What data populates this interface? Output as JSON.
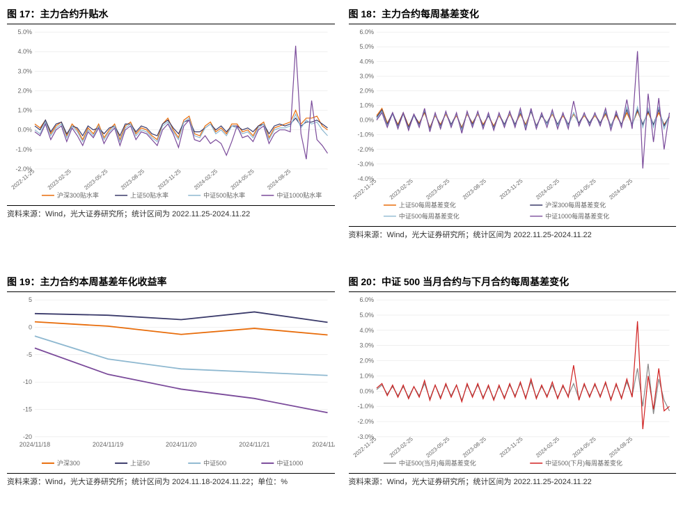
{
  "colors": {
    "orange": "#e86c0a",
    "navy": "#3a3a6a",
    "lightblue": "#8eb8d0",
    "purple": "#7a4a9a",
    "red": "#d02020",
    "gray": "#888888",
    "grid": "#e0e0e0",
    "bg": "#ffffff"
  },
  "chart17": {
    "title": "图 17：主力合约升贴水",
    "source": "资料来源：Wind，光大证券研究所；统计区间为 2022.11.25-2024.11.22",
    "type": "line",
    "ylim": [
      -2.0,
      5.0
    ],
    "ytick_step": 1.0,
    "yformat": "pct1",
    "xlabels": [
      "2022-11-25",
      "2023-02-25",
      "2023-05-25",
      "2023-08-25",
      "2023-11-25",
      "2024-02-25",
      "2024-05-25",
      "2024-08-25"
    ],
    "legend_pos": "bottom",
    "series": [
      {
        "name": "沪深300贴水率",
        "color": "orange",
        "data": [
          0.3,
          0.1,
          0.5,
          -0.2,
          0.2,
          0.4,
          -0.3,
          0.3,
          0.0,
          -0.5,
          0.1,
          -0.2,
          0.3,
          -0.4,
          0.0,
          0.3,
          -0.5,
          0.2,
          0.4,
          -0.2,
          0.1,
          0.0,
          -0.3,
          -0.5,
          0.3,
          0.6,
          0.0,
          -0.4,
          0.5,
          0.7,
          -0.2,
          -0.3,
          0.2,
          0.4,
          -0.1,
          0.1,
          -0.2,
          0.3,
          0.3,
          -0.1,
          0.0,
          -0.3,
          0.2,
          0.4,
          -0.4,
          0.1,
          0.2,
          0.3,
          0.4,
          1.0,
          0.3,
          0.6,
          0.6,
          0.7,
          0.2,
          0.0
        ]
      },
      {
        "name": "上证50贴水率",
        "color": "navy",
        "data": [
          0.2,
          0.0,
          0.5,
          -0.1,
          0.3,
          0.4,
          -0.2,
          0.2,
          0.1,
          -0.3,
          0.2,
          0.0,
          0.1,
          -0.2,
          0.1,
          0.2,
          -0.3,
          0.3,
          0.3,
          -0.1,
          0.2,
          0.1,
          -0.2,
          -0.3,
          0.3,
          0.5,
          0.1,
          -0.2,
          0.4,
          0.5,
          -0.1,
          -0.1,
          0.1,
          0.3,
          0.0,
          0.2,
          -0.1,
          0.2,
          0.2,
          0.0,
          0.1,
          -0.1,
          0.2,
          0.3,
          -0.2,
          0.2,
          0.3,
          0.2,
          0.3,
          0.6,
          0.2,
          0.4,
          0.4,
          0.5,
          0.3,
          0.1
        ]
      },
      {
        "name": "中证500贴水率",
        "color": "lightblue",
        "data": [
          0.0,
          -0.2,
          0.4,
          -0.3,
          0.1,
          0.3,
          -0.4,
          0.2,
          -0.1,
          -0.6,
          0.0,
          -0.3,
          0.2,
          -0.5,
          -0.1,
          0.2,
          -0.6,
          0.1,
          0.3,
          -0.3,
          0.0,
          -0.1,
          -0.4,
          -0.6,
          0.2,
          0.4,
          -0.1,
          -0.5,
          0.4,
          0.6,
          -0.3,
          -0.4,
          0.1,
          0.3,
          -0.2,
          0.0,
          -0.3,
          0.2,
          0.1,
          -0.2,
          -0.1,
          -0.4,
          0.1,
          0.3,
          -0.5,
          0.0,
          0.1,
          0.1,
          0.2,
          0.8,
          0.1,
          0.5,
          0.3,
          0.4,
          0.0,
          -0.3
        ]
      },
      {
        "name": "中证1000贴水率",
        "color": "purple",
        "data": [
          -0.1,
          -0.3,
          0.3,
          -0.5,
          0.0,
          0.2,
          -0.6,
          0.1,
          -0.3,
          -0.8,
          -0.1,
          -0.4,
          0.1,
          -0.7,
          -0.2,
          0.1,
          -0.8,
          0.0,
          0.2,
          -0.5,
          -0.1,
          -0.2,
          -0.5,
          -0.8,
          0.0,
          0.3,
          -0.2,
          -0.9,
          0.2,
          0.5,
          -0.5,
          -0.6,
          -0.3,
          -0.7,
          -0.5,
          -0.7,
          -1.3,
          -0.6,
          0.2,
          -0.4,
          -0.3,
          -0.6,
          0.0,
          0.2,
          -0.7,
          -0.2,
          0.0,
          0.0,
          -0.1,
          4.3,
          -0.2,
          -1.5,
          1.5,
          -0.5,
          -0.8,
          -1.2
        ]
      }
    ]
  },
  "chart18": {
    "title": "图 18：主力合约每周基差变化",
    "source": "资料来源：Wind，光大证券研究所；统计区间为 2022.11.25-2024.11.22",
    "type": "line",
    "ylim": [
      -4.0,
      6.0
    ],
    "ytick_step": 1.0,
    "yformat": "pct1",
    "xlabels": [
      "2022-11-25",
      "2023-02-25",
      "2023-05-25",
      "2023-08-25",
      "2023-11-25",
      "2024-02-25",
      "2024-05-25",
      "2024-08-25"
    ],
    "legend_pos": "bottom",
    "legend_cols": 2,
    "series": [
      {
        "name": "上证50每周基差变化",
        "color": "orange",
        "data": [
          0.3,
          0.8,
          -0.2,
          0.4,
          -0.3,
          0.5,
          -0.4,
          0.3,
          -0.2,
          0.5,
          -0.5,
          0.3,
          -0.3,
          0.4,
          -0.3,
          0.3,
          -0.5,
          0.4,
          -0.2,
          0.4,
          -0.3,
          0.3,
          -0.4,
          0.3,
          -0.3,
          0.4,
          -0.3,
          0.4,
          -0.3,
          0.6,
          -0.4,
          0.3,
          -0.2,
          0.4,
          -0.3,
          0.3,
          -0.3,
          0.4,
          -0.2,
          0.3,
          -0.2,
          0.3,
          -0.2,
          0.4,
          -0.4,
          0.3,
          -0.3,
          0.5,
          -0.3,
          0.6,
          -0.3,
          0.5,
          -0.3,
          0.5,
          -0.3,
          0.2
        ]
      },
      {
        "name": "沪深300每周基差变化",
        "color": "navy",
        "data": [
          0.2,
          0.7,
          -0.3,
          0.5,
          -0.4,
          0.5,
          -0.5,
          0.4,
          -0.3,
          0.6,
          -0.6,
          0.4,
          -0.4,
          0.5,
          -0.3,
          0.4,
          -0.6,
          0.5,
          -0.3,
          0.5,
          -0.4,
          0.3,
          -0.5,
          0.4,
          -0.3,
          0.5,
          -0.3,
          0.5,
          -0.4,
          0.6,
          -0.4,
          0.3,
          -0.2,
          0.5,
          -0.3,
          0.4,
          -0.3,
          0.5,
          -0.2,
          0.4,
          -0.2,
          0.4,
          -0.2,
          0.5,
          -0.4,
          0.4,
          -0.3,
          0.7,
          -0.3,
          0.7,
          -0.3,
          0.6,
          -0.3,
          0.7,
          -0.4,
          0.3
        ]
      },
      {
        "name": "中证500每周基差变化",
        "color": "lightblue",
        "data": [
          0.1,
          0.6,
          -0.4,
          0.4,
          -0.5,
          0.4,
          -0.6,
          0.3,
          -0.4,
          0.7,
          -0.7,
          0.4,
          -0.5,
          0.5,
          -0.4,
          0.4,
          -0.7,
          0.5,
          -0.4,
          0.5,
          -0.5,
          0.4,
          -0.6,
          0.4,
          -0.4,
          0.5,
          -0.4,
          0.6,
          -0.5,
          0.7,
          -0.5,
          0.4,
          -0.3,
          0.5,
          -0.4,
          0.4,
          -0.4,
          0.5,
          -0.3,
          0.4,
          -0.3,
          0.4,
          -0.3,
          0.6,
          -0.5,
          0.5,
          -0.4,
          0.9,
          -0.4,
          0.9,
          -0.5,
          0.8,
          -0.5,
          0.9,
          -0.6,
          0.3
        ]
      },
      {
        "name": "中证1000每周基差变化",
        "color": "purple",
        "data": [
          0.0,
          0.5,
          -0.5,
          0.5,
          -0.6,
          0.5,
          -0.7,
          0.4,
          -0.5,
          0.8,
          -0.8,
          0.5,
          -0.6,
          0.6,
          -0.5,
          0.5,
          -0.9,
          0.6,
          -0.5,
          0.6,
          -0.6,
          0.5,
          -0.7,
          0.5,
          -0.5,
          0.6,
          -0.5,
          0.8,
          -0.7,
          0.8,
          -0.6,
          0.5,
          -0.5,
          0.7,
          -0.6,
          0.5,
          -0.6,
          1.3,
          -0.4,
          0.5,
          -0.4,
          0.5,
          -0.4,
          0.8,
          -0.7,
          0.6,
          -0.5,
          1.4,
          -0.6,
          4.7,
          -3.3,
          1.8,
          -1.5,
          1.5,
          -2.0,
          0.5
        ]
      }
    ]
  },
  "chart19": {
    "title": "图 19：主力合约本周基差年化收益率",
    "source": "资料来源：Wind，光大证券研究所；统计区间为 2024.11.18-2024.11.22；单位：%",
    "type": "line",
    "ylim": [
      -20,
      5
    ],
    "ytick_step": 5,
    "yformat": "int",
    "xlabels": [
      "2024/11/18",
      "2024/11/19",
      "2024/11/20",
      "2024/11/21",
      "2024/11/22"
    ],
    "legend_pos": "bottom",
    "series": [
      {
        "name": "沪深300",
        "color": "orange",
        "data": [
          1.0,
          0.2,
          -1.3,
          -0.2,
          -1.4
        ],
        "thick": true
      },
      {
        "name": "上证50",
        "color": "navy",
        "data": [
          2.5,
          2.2,
          1.4,
          2.8,
          0.9
        ],
        "thick": true
      },
      {
        "name": "中证500",
        "color": "lightblue",
        "data": [
          -1.6,
          -5.8,
          -7.6,
          -8.2,
          -8.8
        ],
        "thick": true
      },
      {
        "name": "中证1000",
        "color": "purple",
        "data": [
          -3.8,
          -8.6,
          -11.3,
          -13.0,
          -15.6
        ],
        "thick": true
      }
    ]
  },
  "chart20": {
    "title": "图 20：中证 500 当月合约与下月合约每周基差变化",
    "source": "资料来源：Wind，光大证券研究所；统计区间为 2022.11.25-2024.11.22",
    "type": "line",
    "ylim": [
      -3.0,
      6.0
    ],
    "ytick_step": 1.0,
    "yformat": "pct1",
    "xlabels": [
      "2022-11-25",
      "2023-02-25",
      "2023-05-25",
      "2023-08-25",
      "2023-11-25",
      "2024-02-25",
      "2024-05-25",
      "2024-08-25"
    ],
    "legend_pos": "bottom",
    "series": [
      {
        "name": "中证500(当月)每周基差变化",
        "color": "gray",
        "data": [
          0.1,
          0.4,
          -0.2,
          0.3,
          -0.3,
          0.3,
          -0.4,
          0.3,
          -0.3,
          0.5,
          -0.5,
          0.4,
          -0.4,
          0.4,
          -0.3,
          0.4,
          -0.6,
          0.4,
          -0.3,
          0.4,
          -0.4,
          0.3,
          -0.5,
          0.3,
          -0.4,
          0.4,
          -0.3,
          0.5,
          -0.4,
          0.6,
          -0.4,
          0.3,
          -0.3,
          0.4,
          -0.4,
          0.3,
          -0.3,
          0.5,
          -0.5,
          0.4,
          -0.3,
          0.4,
          -0.3,
          0.5,
          -0.5,
          0.4,
          -0.4,
          0.6,
          -0.3,
          1.5,
          -1.0,
          1.8,
          -1.5,
          0.8,
          -0.6,
          -1.3
        ]
      },
      {
        "name": "中证500(下月)每周基差变化",
        "color": "red",
        "data": [
          0.2,
          0.5,
          -0.3,
          0.4,
          -0.4,
          0.4,
          -0.5,
          0.3,
          -0.4,
          0.7,
          -0.6,
          0.4,
          -0.5,
          0.5,
          -0.4,
          0.4,
          -0.7,
          0.5,
          -0.4,
          0.5,
          -0.5,
          0.4,
          -0.6,
          0.4,
          -0.5,
          0.5,
          -0.4,
          0.6,
          -0.5,
          0.8,
          -0.5,
          0.4,
          -0.4,
          0.6,
          -0.5,
          0.4,
          -0.4,
          1.7,
          -0.6,
          0.5,
          -0.4,
          0.5,
          -0.4,
          0.6,
          -0.6,
          0.5,
          -0.5,
          0.8,
          -0.4,
          4.6,
          -2.5,
          1.0,
          -1.2,
          1.5,
          -1.3,
          -1.0
        ]
      }
    ]
  }
}
